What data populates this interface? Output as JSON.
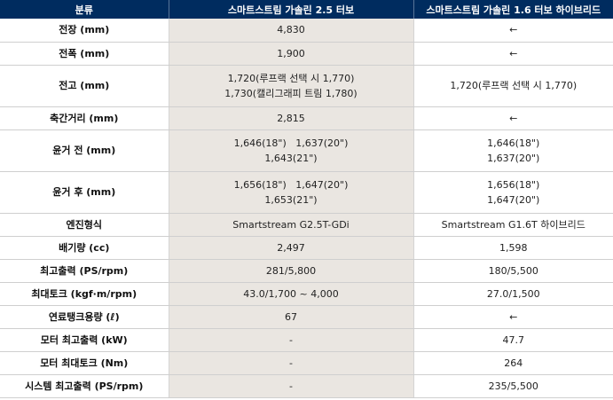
{
  "headers": [
    "분류",
    "스마트스트림 가솔린 2.5 터보",
    "스마트스트림 가솔린 1.6 터보 하이브리드"
  ],
  "rows": [
    {
      "label": "전장 (mm)",
      "v1": [
        "4,830"
      ],
      "v2": [
        "←"
      ]
    },
    {
      "label": "전폭 (mm)",
      "v1": [
        "1,900"
      ],
      "v2": [
        "←"
      ]
    },
    {
      "label": "전고 (mm)",
      "v1": [
        "1,720(루프랙 선택 시 1,770)",
        "1,730(캘리그래피 트림 1,780)"
      ],
      "v2": [
        "1,720(루프랙 선택 시 1,770)"
      ]
    },
    {
      "label": "축간거리 (mm)",
      "v1": [
        "2,815"
      ],
      "v2": [
        "←"
      ]
    },
    {
      "label": "윤거 전 (mm)",
      "v1": [
        "1,646(18\")   1,637(20\")",
        "1,643(21\")"
      ],
      "v2": [
        "1,646(18\")",
        "1,637(20\")"
      ]
    },
    {
      "label": "윤거 후 (mm)",
      "v1": [
        "1,656(18\")   1,647(20\")",
        "1,653(21\")"
      ],
      "v2": [
        "1,656(18\")",
        "1,647(20\")"
      ]
    },
    {
      "label": "엔진형식",
      "v1": [
        "Smartstream G2.5T-GDi"
      ],
      "v2": [
        "Smartstream G1.6T 하이브리드"
      ]
    },
    {
      "label": "배기량 (cc)",
      "v1": [
        "2,497"
      ],
      "v2": [
        "1,598"
      ]
    },
    {
      "label": "최고출력 (PS/rpm)",
      "v1": [
        "281/5,800"
      ],
      "v2": [
        "180/5,500"
      ]
    },
    {
      "label": "최대토크 (kgf·m/rpm)",
      "v1": [
        "43.0/1,700 ~ 4,000"
      ],
      "v2": [
        "27.0/1,500"
      ]
    },
    {
      "label": "연료탱크용량 (ℓ)",
      "v1": [
        "67"
      ],
      "v2": [
        "←"
      ]
    },
    {
      "label": "모터 최고출력 (kW)",
      "v1": [
        "-"
      ],
      "v2": [
        "47.7"
      ]
    },
    {
      "label": "모터 최대토크 (Nm)",
      "v1": [
        "-"
      ],
      "v2": [
        "264"
      ]
    },
    {
      "label": "시스템 최고출력 (PS/rpm)",
      "v1": [
        "-"
      ],
      "v2": [
        "235/5,500"
      ]
    }
  ]
}
